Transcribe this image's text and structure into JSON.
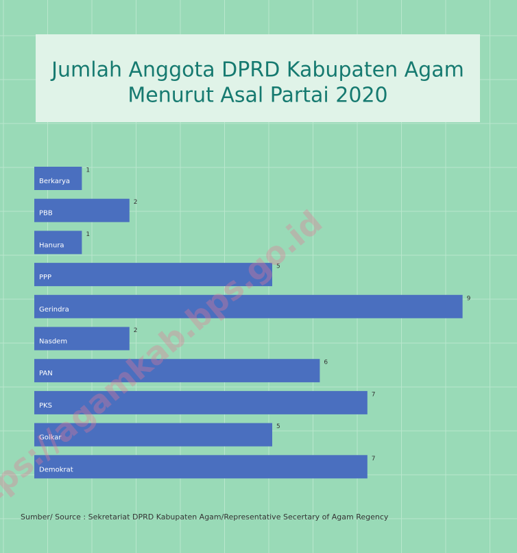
{
  "chart_data": {
    "type": "hbar",
    "title": [
      "Jumlah Anggota DPRD Kabupaten Agam",
      "Menurut Asal Partai 2020"
    ],
    "categories": [
      "Berkarya",
      "PBB",
      "Hanura",
      "PPP",
      "Gerindra",
      "Nasdem",
      "PAN",
      "PKS",
      "Golkar",
      "Demokrat"
    ],
    "values": [
      1,
      2,
      1,
      5,
      9,
      2,
      6,
      7,
      5,
      7
    ],
    "color": "#4a6fbf",
    "source": "Sumber/ Source : Sekretariat DPRD Kabupaten Agam/Representative Secertary of Agam Regency",
    "watermark": "https://agamkab.bps.go.id"
  }
}
